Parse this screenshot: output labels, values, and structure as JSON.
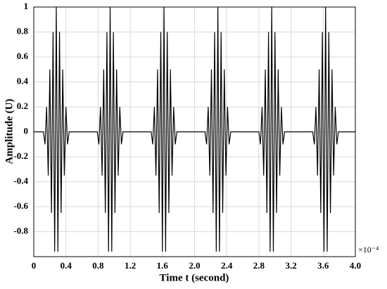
{
  "chart_data": {
    "type": "line",
    "x_label": "Time t (second)",
    "y_label": "Amplitude (U)",
    "x_multiplier": "×10⁻⁴",
    "xlim": [
      0,
      4.0
    ],
    "ylim": [
      -1,
      1
    ],
    "xticks": [
      0,
      0.4,
      0.8,
      1.2,
      1.6,
      {
        "value": 2.0,
        "label": "2.0"
      },
      2.4,
      2.8,
      3.2,
      3.6,
      {
        "value": 4.0,
        "label": "4.0"
      }
    ],
    "yticks": [
      -0.8,
      -0.6,
      -0.4,
      -0.2,
      0,
      0.2,
      0.4,
      0.6,
      0.8,
      1
    ],
    "grid": true,
    "series": [
      {
        "color": "#000000",
        "x": [
          0,
          0.12,
          0.14,
          0.16,
          0.18,
          0.2,
          0.22,
          0.24,
          0.26,
          0.28,
          0.3,
          0.32,
          0.34,
          0.36,
          0.38,
          0.4,
          0.42,
          0.44,
          0.79,
          0.81,
          0.83,
          0.85,
          0.87,
          0.89,
          0.91,
          0.93,
          0.95,
          0.97,
          0.99,
          1.01,
          1.03,
          1.05,
          1.07,
          1.09,
          1.11,
          1.46,
          1.48,
          1.5,
          1.52,
          1.54,
          1.56,
          1.58,
          1.6,
          1.62,
          1.64,
          1.66,
          1.68,
          1.7,
          1.72,
          1.74,
          1.76,
          1.78,
          2.13,
          2.15,
          2.17,
          2.19,
          2.21,
          2.23,
          2.25,
          2.27,
          2.29,
          2.31,
          2.33,
          2.35,
          2.37,
          2.39,
          2.41,
          2.43,
          2.45,
          2.8,
          2.82,
          2.84,
          2.86,
          2.88,
          2.9,
          2.92,
          2.94,
          2.96,
          2.98,
          3.0,
          3.02,
          3.04,
          3.06,
          3.08,
          3.1,
          3.12,
          3.47,
          3.49,
          3.51,
          3.53,
          3.55,
          3.57,
          3.59,
          3.61,
          3.63,
          3.65,
          3.67,
          3.69,
          3.71,
          3.73,
          3.75,
          3.77,
          3.79,
          4.0
        ],
        "values": [
          0,
          0,
          -0.1,
          0.2,
          -0.35,
          0.5,
          -0.65,
          0.8,
          -0.96,
          1.0,
          -0.96,
          0.8,
          -0.65,
          0.5,
          -0.35,
          0.2,
          -0.1,
          0,
          0,
          -0.1,
          0.2,
          -0.35,
          0.5,
          -0.65,
          0.8,
          -0.96,
          1.0,
          -0.96,
          0.8,
          -0.65,
          0.5,
          -0.35,
          0.2,
          -0.1,
          0,
          0,
          -0.1,
          0.2,
          -0.35,
          0.5,
          -0.65,
          0.8,
          -0.96,
          1.0,
          -0.96,
          0.8,
          -0.65,
          0.5,
          -0.35,
          0.2,
          -0.1,
          0,
          0,
          -0.1,
          0.2,
          -0.35,
          0.5,
          -0.65,
          0.8,
          -0.96,
          1.0,
          -0.96,
          0.8,
          -0.65,
          0.5,
          -0.35,
          0.2,
          -0.1,
          0,
          0,
          -0.1,
          0.2,
          -0.35,
          0.5,
          -0.65,
          0.8,
          -0.96,
          1.0,
          -0.96,
          0.8,
          -0.65,
          0.5,
          -0.35,
          0.2,
          -0.1,
          0,
          0,
          -0.1,
          0.2,
          -0.35,
          0.5,
          -0.65,
          0.8,
          -0.96,
          1.0,
          -0.96,
          0.8,
          -0.65,
          0.5,
          -0.35,
          0.2,
          -0.1,
          0,
          0
        ]
      }
    ]
  }
}
